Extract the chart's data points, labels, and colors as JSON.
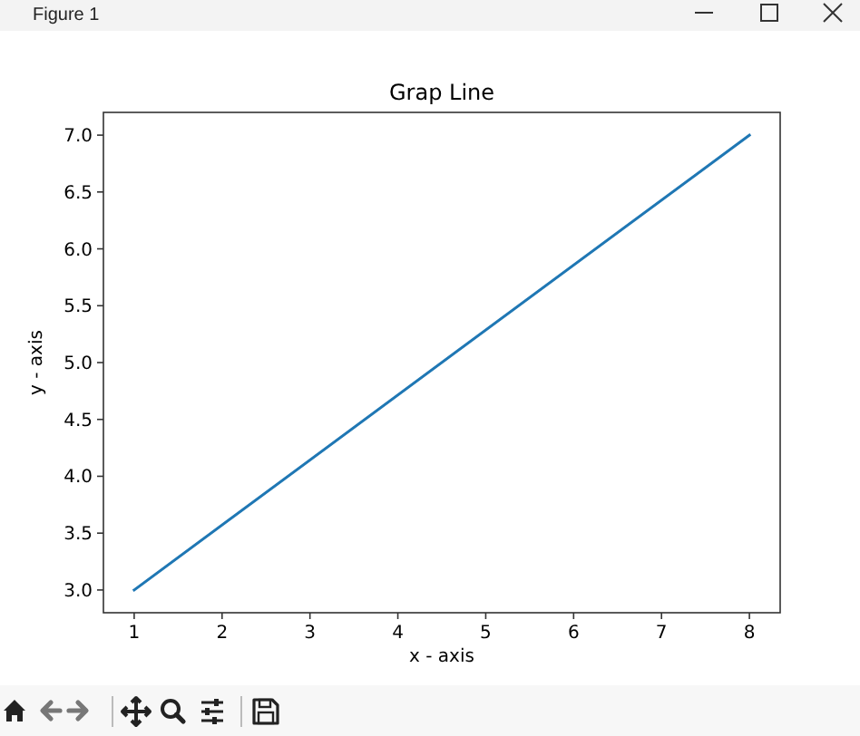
{
  "chart_data": {
    "type": "line",
    "title": "Grap Line",
    "xlabel": "x - axis",
    "ylabel": "y - axis",
    "x": [
      1,
      8
    ],
    "values": [
      3,
      7
    ],
    "color": "#1f77b4",
    "xlim": [
      0.65,
      8.35
    ],
    "ylim": [
      2.8,
      7.2
    ],
    "xticks": [
      1,
      2,
      3,
      4,
      5,
      6,
      7,
      8
    ],
    "yticks": [
      {
        "value": 3,
        "label": "3.0"
      },
      {
        "value": 3.5,
        "label": "3.5"
      },
      {
        "value": 4,
        "label": "4.0"
      },
      {
        "value": 4.5,
        "label": "4.5"
      },
      {
        "value": 5,
        "label": "5.0"
      },
      {
        "value": 5.5,
        "label": "5.5"
      },
      {
        "value": 6,
        "label": "6.0"
      },
      {
        "value": 6.5,
        "label": "6.5"
      },
      {
        "value": 7,
        "label": "7.0"
      }
    ],
    "marker": "none",
    "line_style": "solid",
    "annotations": [
      "Figure 1"
    ]
  }
}
